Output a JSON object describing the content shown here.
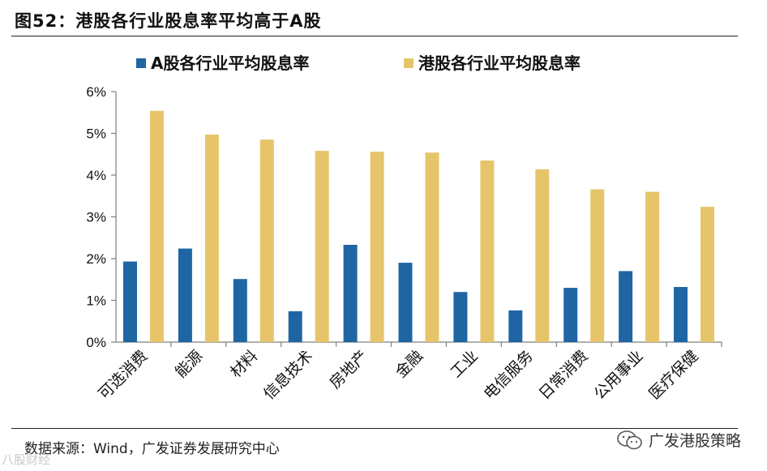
{
  "figure_label": "图52：港股各行业股息率平均高于A股",
  "source_text": "数据来源：Wind，广发证券发展研究中心",
  "account_name": "广发港股策略",
  "watermark_text": "八股财经",
  "colors": {
    "series_a": "#1F65A4",
    "series_hk": "#E6C56A",
    "axis": "#7f7f7f"
  },
  "chart_data": {
    "type": "bar",
    "title": "",
    "xlabel": "",
    "ylabel": "",
    "categories": [
      "可选消费",
      "能源",
      "材料",
      "信息技术",
      "房地产",
      "金融",
      "工业",
      "电信服务",
      "日常消费",
      "公用事业",
      "医疗保健"
    ],
    "series": [
      {
        "name": "A股各行业平均股息率",
        "values": [
          1.93,
          2.24,
          1.51,
          0.74,
          2.33,
          1.9,
          1.2,
          0.76,
          1.3,
          1.7,
          1.32
        ]
      },
      {
        "name": "港股各行业平均股息率",
        "values": [
          5.54,
          4.97,
          4.85,
          4.58,
          4.56,
          4.54,
          4.35,
          4.14,
          3.66,
          3.6,
          3.24
        ]
      }
    ],
    "ylim": [
      0,
      6
    ],
    "yticks": [
      "0%",
      "1%",
      "2%",
      "3%",
      "4%",
      "5%",
      "6%"
    ],
    "legend_position": "top",
    "grid": false
  }
}
